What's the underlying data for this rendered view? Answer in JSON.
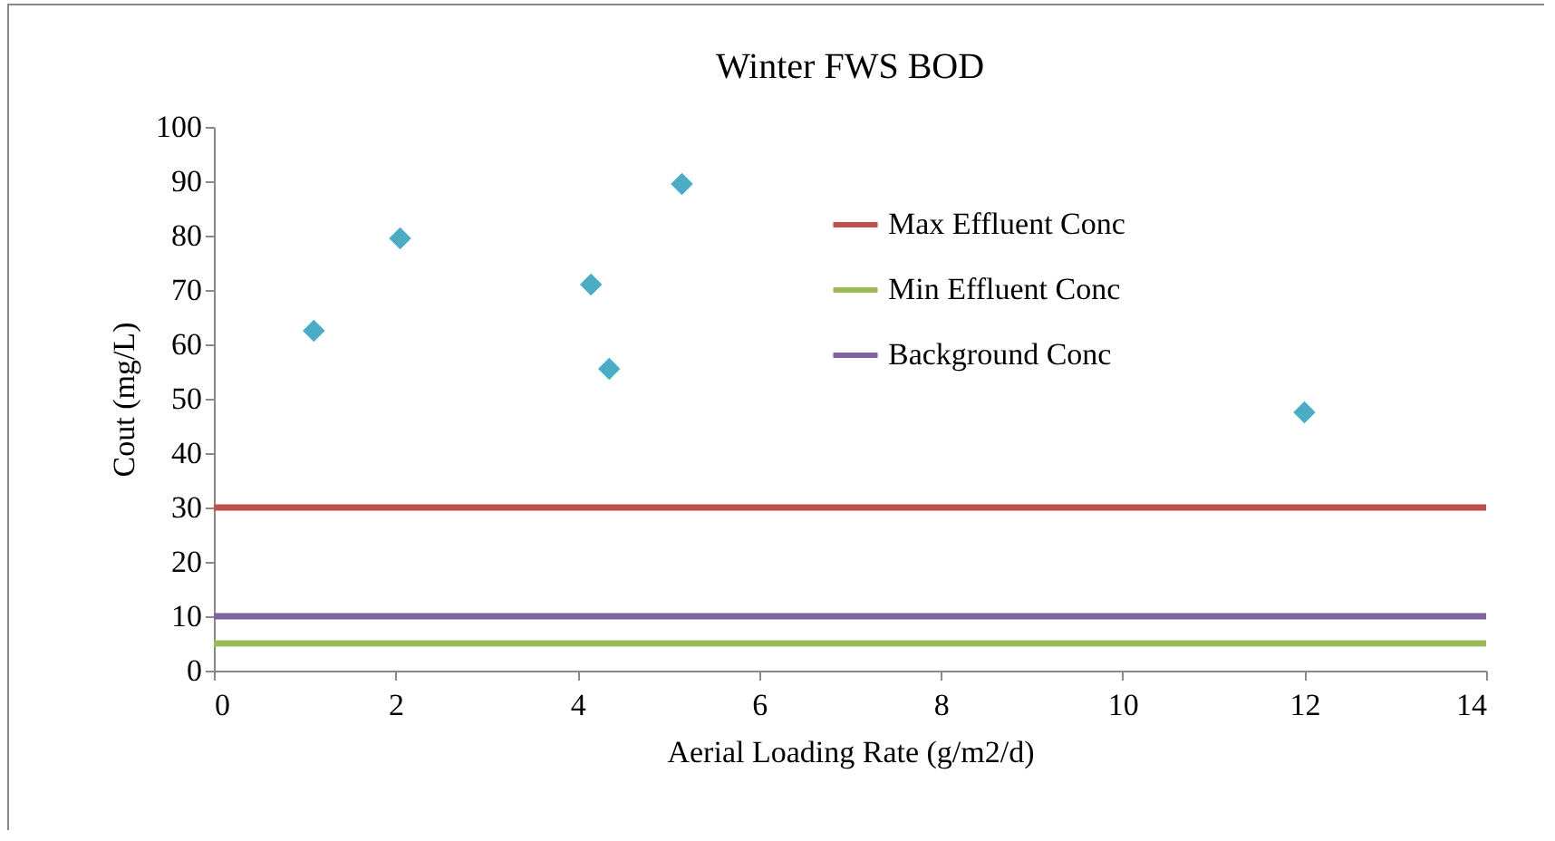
{
  "chart_data": {
    "type": "scatter",
    "title": "Winter FWS BOD",
    "xlabel": "Aerial Loading Rate (g/m2/d)",
    "ylabel": "Cout (mg/L)",
    "xlim": [
      0,
      14
    ],
    "xticks": [
      0,
      2,
      4,
      6,
      8,
      10,
      12,
      14
    ],
    "ylim": [
      0,
      100
    ],
    "yticks": [
      0,
      10,
      20,
      30,
      40,
      50,
      60,
      70,
      80,
      90,
      100
    ],
    "grid": false,
    "legend": "top right",
    "series": [
      {
        "marker": "diamond",
        "color": "#4bacc6",
        "x": [
          1.1,
          2.05,
          4.15,
          4.35,
          5.15,
          12.0
        ],
        "values": [
          62.5,
          79.5,
          71,
          55.5,
          89.5,
          47.5
        ]
      },
      {
        "type": "line",
        "marker": "none",
        "name": "Max Effluent Conc",
        "color": "#c0504d",
        "x": [
          0,
          14
        ],
        "values": [
          30,
          30
        ]
      },
      {
        "type": "line",
        "marker": "none",
        "name": "Min Effluent Conc",
        "color": "#9bbb59",
        "x": [
          0,
          14
        ],
        "values": [
          5,
          5
        ]
      },
      {
        "type": "line",
        "marker": "none",
        "name": "Background Conc",
        "color": "#8064a2",
        "x": [
          0,
          14
        ],
        "values": [
          10,
          10
        ]
      }
    ]
  }
}
